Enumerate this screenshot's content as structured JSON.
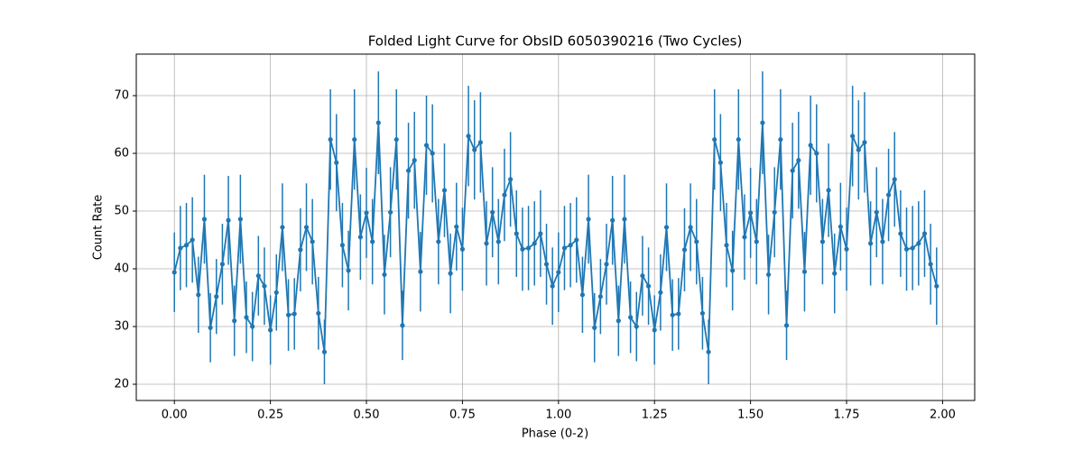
{
  "chart_data": {
    "type": "errorbar-line",
    "title": "Folded Light Curve for ObsID 6050390216 (Two Cycles)",
    "xlabel": "Phase (0-2)",
    "ylabel": "Count Rate",
    "color": "#1f77b4",
    "grid": true,
    "xlim": [
      -0.0992,
      2.0836
    ],
    "ylim": [
      17.19,
      77.19
    ],
    "xticks": [
      {
        "value": 0,
        "label": "0.00"
      },
      {
        "value": 0.25,
        "label": "0.25"
      },
      {
        "value": 0.5,
        "label": "0.50"
      },
      {
        "value": 0.75,
        "label": "0.75"
      },
      {
        "value": 1,
        "label": "1.00"
      },
      {
        "value": 1.25,
        "label": "1.25"
      },
      {
        "value": 1.5,
        "label": "1.50"
      },
      {
        "value": 1.75,
        "label": "1.75"
      },
      {
        "value": 2,
        "label": "2.00"
      }
    ],
    "yticks": [
      20,
      30,
      40,
      50,
      60,
      70
    ],
    "x": [
      0,
      0.015625,
      0.03125,
      0.046875,
      0.0625,
      0.078125,
      0.09375,
      0.109375,
      0.125,
      0.140625,
      0.15625,
      0.171875,
      0.1875,
      0.203125,
      0.21875,
      0.234375,
      0.25,
      0.265625,
      0.28125,
      0.296875,
      0.3125,
      0.328125,
      0.34375,
      0.359375,
      0.375,
      0.390625,
      0.40625,
      0.421875,
      0.4375,
      0.453125,
      0.46875,
      0.484375,
      0.5,
      0.515625,
      0.53125,
      0.546875,
      0.5625,
      0.578125,
      0.59375,
      0.609375,
      0.625,
      0.640625,
      0.65625,
      0.671875,
      0.6875,
      0.703125,
      0.71875,
      0.734375,
      0.75,
      0.765625,
      0.78125,
      0.796875,
      0.8125,
      0.828125,
      0.84375,
      0.859375,
      0.875,
      0.890625,
      0.90625,
      0.921875,
      0.9375,
      0.953125,
      0.96875,
      0.984375,
      1,
      1.015625,
      1.03125,
      1.046875,
      1.0625,
      1.078125,
      1.09375,
      1.109375,
      1.125,
      1.140625,
      1.15625,
      1.171875,
      1.1875,
      1.203125,
      1.21875,
      1.234375,
      1.25,
      1.265625,
      1.28125,
      1.296875,
      1.3125,
      1.328125,
      1.34375,
      1.359375,
      1.375,
      1.390625,
      1.40625,
      1.421875,
      1.4375,
      1.453125,
      1.46875,
      1.484375,
      1.5,
      1.515625,
      1.53125,
      1.546875,
      1.5625,
      1.578125,
      1.59375,
      1.609375,
      1.625,
      1.640625,
      1.65625,
      1.671875,
      1.6875,
      1.703125,
      1.71875,
      1.734375,
      1.75,
      1.765625,
      1.78125,
      1.796875,
      1.8125,
      1.828125,
      1.84375,
      1.859375,
      1.875,
      1.890625,
      1.90625,
      1.921875,
      1.9375,
      1.953125,
      1.96875,
      1.984375
    ],
    "values": [
      39.4,
      43.6,
      44.1,
      45,
      35.5,
      48.6,
      29.8,
      35.2,
      40.8,
      48.4,
      31,
      48.6,
      31.6,
      30,
      38.8,
      37,
      29.4,
      35.9,
      47.2,
      32,
      32.2,
      43.3,
      47.2,
      44.7,
      32.3,
      25.6,
      62.4,
      58.4,
      44.1,
      39.7,
      62.4,
      45.5,
      49.7,
      44.7,
      65.3,
      39,
      49.8,
      62.4,
      30.2,
      57,
      58.8,
      39.5,
      61.4,
      60,
      44.7,
      53.6,
      39.2,
      47.3,
      43.4,
      63,
      60.6,
      61.9,
      44.4,
      49.8,
      44.7,
      52.8,
      55.5,
      46.1,
      43.4,
      43.6,
      44.4,
      46.1,
      40.8,
      37,
      39.4,
      43.6,
      44.1,
      45,
      35.5,
      48.6,
      29.8,
      35.2,
      40.8,
      48.4,
      31,
      48.6,
      31.6,
      30,
      38.8,
      37,
      29.4,
      35.9,
      47.2,
      32,
      32.2,
      43.3,
      47.2,
      44.7,
      32.3,
      25.6,
      62.4,
      58.4,
      44.1,
      39.7,
      62.4,
      45.5,
      49.7,
      44.7,
      65.3,
      39,
      49.8,
      62.4,
      30.2,
      57,
      58.8,
      39.5,
      61.4,
      60,
      44.7,
      53.6,
      39.2,
      47.3,
      43.4,
      63,
      60.6,
      61.9,
      44.4,
      49.8,
      44.7,
      52.8,
      55.5,
      46.1,
      43.4,
      43.6,
      44.4,
      46.1,
      40.8,
      37
    ],
    "errors": [
      6.9,
      7.3,
      7.3,
      7.4,
      6.6,
      7.7,
      6.0,
      6.5,
      7.0,
      7.7,
      6.1,
      7.7,
      6.2,
      6.0,
      6.9,
      6.7,
      6.0,
      6.6,
      7.6,
      6.2,
      6.2,
      7.2,
      7.6,
      7.4,
      6.3,
      5.6,
      8.7,
      8.4,
      7.3,
      6.9,
      8.7,
      7.4,
      7.8,
      7.4,
      8.9,
      6.9,
      7.8,
      8.7,
      6.0,
      8.3,
      8.4,
      6.9,
      8.6,
      8.5,
      7.4,
      8.1,
      6.9,
      7.6,
      7.2,
      8.7,
      8.6,
      8.7,
      7.3,
      7.8,
      7.4,
      8.0,
      8.2,
      7.5,
      7.2,
      7.3,
      7.3,
      7.5,
      7.0,
      6.7,
      6.9,
      7.3,
      7.3,
      7.4,
      6.6,
      7.7,
      6.0,
      6.5,
      7.0,
      7.7,
      6.1,
      7.7,
      6.2,
      6.0,
      6.9,
      6.7,
      6.0,
      6.6,
      7.6,
      6.2,
      6.2,
      7.2,
      7.6,
      7.4,
      6.3,
      5.6,
      8.7,
      8.4,
      7.3,
      6.9,
      8.7,
      7.4,
      7.8,
      7.4,
      8.9,
      6.9,
      7.8,
      8.7,
      6.0,
      8.3,
      8.4,
      6.9,
      8.6,
      8.5,
      7.4,
      8.1,
      6.9,
      7.6,
      7.2,
      8.7,
      8.6,
      8.7,
      7.3,
      7.8,
      7.4,
      8.0,
      8.2,
      7.5,
      7.2,
      7.3,
      7.3,
      7.5,
      7.0,
      6.7
    ]
  }
}
